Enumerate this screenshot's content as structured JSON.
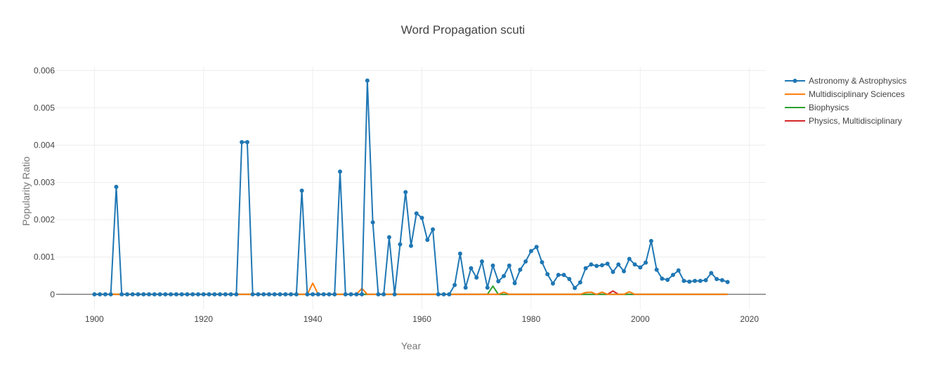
{
  "chart_data": {
    "type": "line",
    "title": "Word Propagation scuti",
    "xlabel": "Year",
    "ylabel": "Popularity Ratio",
    "xlim": [
      1893,
      2023
    ],
    "ylim": [
      -0.0004,
      0.0061
    ],
    "xticks": [
      1900,
      1920,
      1940,
      1960,
      1980,
      2000,
      2020
    ],
    "yticks": [
      0,
      0.001,
      0.002,
      0.003,
      0.004,
      0.005,
      0.006
    ],
    "ytick_labels": [
      "0",
      "0.001",
      "0.002",
      "0.003",
      "0.004",
      "0.005",
      "0.006"
    ],
    "grid": true,
    "legend_position": "top-right",
    "series": [
      {
        "name": "Astronomy & Astrophysics",
        "color": "#1f77b4",
        "markers": true,
        "x": [
          1900,
          1901,
          1902,
          1903,
          1904,
          1905,
          1906,
          1907,
          1908,
          1909,
          1910,
          1911,
          1912,
          1913,
          1914,
          1915,
          1916,
          1917,
          1918,
          1919,
          1920,
          1921,
          1922,
          1923,
          1924,
          1925,
          1926,
          1927,
          1928,
          1929,
          1930,
          1931,
          1932,
          1933,
          1934,
          1935,
          1936,
          1937,
          1938,
          1939,
          1940,
          1941,
          1942,
          1943,
          1944,
          1945,
          1946,
          1947,
          1948,
          1949,
          1950,
          1951,
          1952,
          1953,
          1954,
          1955,
          1956,
          1957,
          1958,
          1959,
          1960,
          1961,
          1962,
          1963,
          1964,
          1965,
          1966,
          1967,
          1968,
          1969,
          1970,
          1971,
          1972,
          1973,
          1974,
          1975,
          1976,
          1977,
          1978,
          1979,
          1980,
          1981,
          1982,
          1983,
          1984,
          1985,
          1986,
          1987,
          1988,
          1989,
          1990,
          1991,
          1992,
          1993,
          1994,
          1995,
          1996,
          1997,
          1998,
          1999,
          2000,
          2001,
          2002,
          2003,
          2004,
          2005,
          2006,
          2007,
          2008,
          2009,
          2010,
          2011,
          2012,
          2013,
          2014,
          2015,
          2016
        ],
        "y": [
          0,
          0,
          0,
          0,
          0.00288,
          0,
          0,
          0,
          0,
          0,
          0,
          0,
          0,
          0,
          0,
          0,
          0,
          0,
          0,
          0,
          0,
          0,
          0,
          0,
          0,
          0,
          0,
          0.00408,
          0.00408,
          0,
          0,
          0,
          0,
          0,
          0,
          0,
          0,
          0,
          0.00278,
          0,
          0,
          0,
          0,
          0,
          0,
          0.00329,
          0,
          0,
          0,
          0,
          0.00573,
          0.00193,
          0,
          0,
          0.00153,
          0,
          0.00134,
          0.00274,
          0.0013,
          0.00217,
          0.00205,
          0.00146,
          0.00174,
          0,
          0,
          0,
          0.00025,
          0.00109,
          0.00018,
          0.0007,
          0.00045,
          0.00088,
          0.00018,
          0.00077,
          0.00035,
          0.00049,
          0.00077,
          0.0003,
          0.00066,
          0.00088,
          0.00116,
          0.00127,
          0.00086,
          0.00054,
          0.00029,
          0.00052,
          0.00052,
          0.00041,
          0.00017,
          0.00032,
          0.0007,
          0.0008,
          0.00076,
          0.00078,
          0.00082,
          0.0006,
          0.0008,
          0.00062,
          0.00095,
          0.0008,
          0.00072,
          0.00085,
          0.00143,
          0.00066,
          0.00042,
          0.00039,
          0.00052,
          0.00064,
          0.00036,
          0.00034,
          0.00036,
          0.00036,
          0.00038,
          0.00057,
          0.00041,
          0.00038,
          0.00033
        ]
      },
      {
        "name": "Multidisciplinary Sciences",
        "color": "#ff7f0e",
        "markers": false,
        "x": [
          1900,
          1938,
          1939,
          1940,
          1941,
          1942,
          1947,
          1948,
          1949,
          1950,
          1951,
          1973,
          1974,
          1975,
          1976,
          1977,
          1988,
          1989,
          1990,
          1991,
          1992,
          1993,
          1994,
          1995,
          1996,
          1997,
          1998,
          1999,
          2000,
          2016
        ],
        "y": [
          0,
          0,
          0,
          0.0003,
          0,
          0,
          0,
          0,
          0.00016,
          0,
          0,
          0,
          0,
          6e-05,
          0,
          0,
          0,
          0,
          5e-05,
          6e-05,
          0,
          6e-05,
          0,
          0,
          0,
          0,
          7e-05,
          0,
          0,
          0
        ]
      },
      {
        "name": "Biophysics",
        "color": "#2ca02c",
        "markers": false,
        "x": [
          1900,
          1971,
          1972,
          1973,
          1974,
          1975,
          2016
        ],
        "y": [
          0,
          0,
          0,
          0.00022,
          0,
          0,
          0
        ]
      },
      {
        "name": "Physics, Multidisciplinary",
        "color": "#d62728",
        "markers": false,
        "x": [
          1900,
          1994,
          1995,
          1996,
          2016
        ],
        "y": [
          0,
          0,
          9e-05,
          0,
          0
        ]
      }
    ]
  }
}
